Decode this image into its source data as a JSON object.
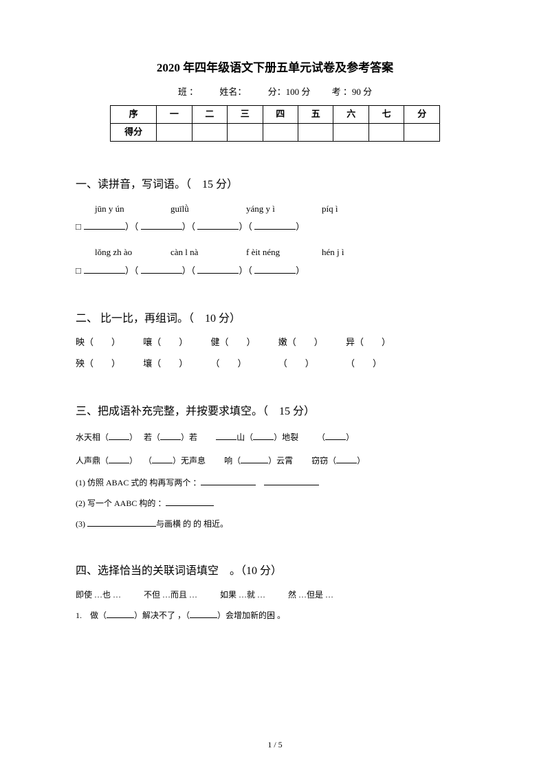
{
  "title": "2020 年四年级语文下册五单元试卷及参考答案",
  "meta": {
    "class": "班 ：",
    "name": "姓名：",
    "full": "分：100 分",
    "time": "考 ：90 分"
  },
  "table": {
    "r1": [
      "序",
      "一",
      "二",
      "三",
      "四",
      "五",
      "六",
      "七",
      "分"
    ],
    "r2_label": "得分"
  },
  "s1": {
    "title": "一、读拼音，写词语。（　15 分）",
    "row1": [
      "jūn y ún",
      "guīlǜ",
      "yáng y ì",
      "píq ì"
    ],
    "row2": [
      "lǒng zh ào",
      "càn l nà",
      "f èit néng",
      "hén j ì"
    ]
  },
  "s2": {
    "title": "二、 比一比，再组词。（　10 分）",
    "r1": [
      "映（",
      "嚷（",
      "健（",
      "嫩（",
      "异（"
    ],
    "r2": [
      "殃（",
      "壤（",
      "（",
      "（",
      "（"
    ]
  },
  "s3": {
    "title": "三、把成语补充完整，并按要求填空。（　15 分）",
    "l1a": "水天相（",
    "l1b": "若（",
    "l1c": "）若",
    "l1d": "山（",
    "l1e": "）地裂",
    "l1f": "（",
    "l2a": "人声鼎（",
    "l2b": "（",
    "l2c": "）无声息",
    "l2d": "响（",
    "l2e": "）云霄",
    "l2f": "窃窃（",
    "q1": "(1) 仿照 ABAC 式的 构再写两个 ：",
    "q2": "(2) 写一个 AABC 构的 ：",
    "q3a": "(3) ",
    "q3b": "与画横 的 的 相近。"
  },
  "s4": {
    "title": "四、选择恰当的关联词语填空　。（10 分）",
    "opts": [
      "即使 …也 …",
      "不但 …而且 …",
      "如果 …就 …",
      "然 …但是 …"
    ],
    "q1a": "1.　做（",
    "q1b": "）解决不了 ，（",
    "q1c": "）会增加新的困 。"
  },
  "footer": "1 / 5"
}
